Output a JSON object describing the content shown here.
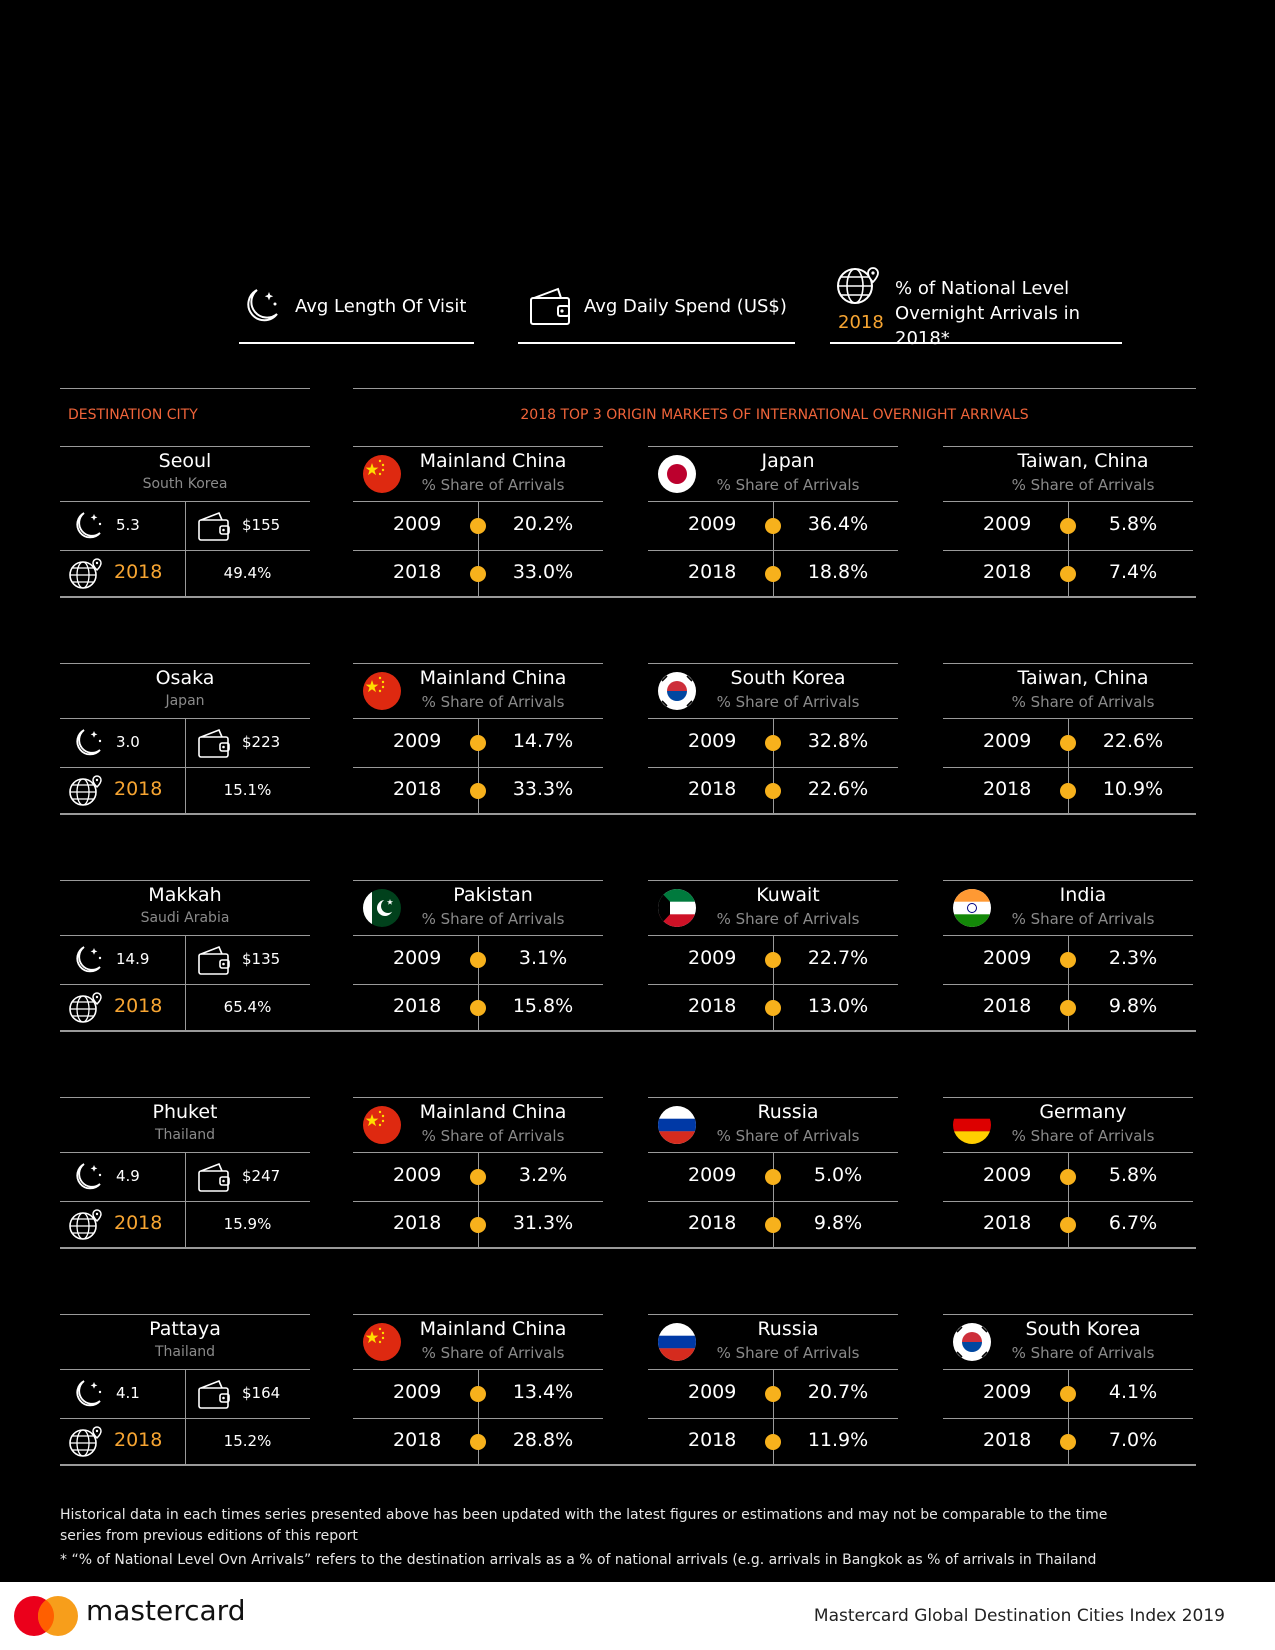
{
  "legend": {
    "length_label": "Avg Length Of Visit",
    "spend_label": "Avg Daily Spend (US$)",
    "national_label_line1": "% of National Level",
    "national_label_line2": "Overnight Arrivals in 2018*",
    "national_year": "2018"
  },
  "headers": {
    "destination": "DESTINATION CITY",
    "markets": "2018 TOP 3 ORIGIN MARKETS OF INTERNATIONAL OVERNIGHT ARRIVALS"
  },
  "subtitle_share": "% Share of Arrivals",
  "year_a": "2009",
  "year_b": "2018",
  "chart_data": {
    "type": "table",
    "cities": [
      {
        "name": "Seoul",
        "country": "South Korea",
        "length": "5.3",
        "spend": "$155",
        "year": "2018",
        "national": "49.4%",
        "markets": [
          {
            "name": "Mainland China",
            "flag": "china",
            "v2009": "20.2%",
            "v2018": "33.0%"
          },
          {
            "name": "Japan",
            "flag": "japan",
            "v2009": "36.4%",
            "v2018": "18.8%"
          },
          {
            "name": "Taiwan, China",
            "flag": "none",
            "v2009": "5.8%",
            "v2018": "7.4%"
          }
        ]
      },
      {
        "name": "Osaka",
        "country": "Japan",
        "length": "3.0",
        "spend": "$223",
        "year": "2018",
        "national": "15.1%",
        "markets": [
          {
            "name": "Mainland China",
            "flag": "china",
            "v2009": "14.7%",
            "v2018": "33.3%"
          },
          {
            "name": "South Korea",
            "flag": "korea",
            "v2009": "32.8%",
            "v2018": "22.6%"
          },
          {
            "name": "Taiwan, China",
            "flag": "none",
            "v2009": "22.6%",
            "v2018": "10.9%"
          }
        ]
      },
      {
        "name": "Makkah",
        "country": "Saudi Arabia",
        "length": "14.9",
        "spend": "$135",
        "year": "2018",
        "national": "65.4%",
        "markets": [
          {
            "name": "Pakistan",
            "flag": "pakistan",
            "v2009": "3.1%",
            "v2018": "15.8%"
          },
          {
            "name": "Kuwait",
            "flag": "kuwait",
            "v2009": "22.7%",
            "v2018": "13.0%"
          },
          {
            "name": "India",
            "flag": "india",
            "v2009": "2.3%",
            "v2018": "9.8%"
          }
        ]
      },
      {
        "name": "Phuket",
        "country": "Thailand",
        "length": "4.9",
        "spend": "$247",
        "year": "2018",
        "national": "15.9%",
        "markets": [
          {
            "name": "Mainland China",
            "flag": "china",
            "v2009": "3.2%",
            "v2018": "31.3%"
          },
          {
            "name": "Russia",
            "flag": "russia",
            "v2009": "5.0%",
            "v2018": "9.8%"
          },
          {
            "name": "Germany",
            "flag": "germany",
            "v2009": "5.8%",
            "v2018": "6.7%"
          }
        ]
      },
      {
        "name": "Pattaya",
        "country": "Thailand",
        "length": "4.1",
        "spend": "$164",
        "year": "2018",
        "national": "15.2%",
        "markets": [
          {
            "name": "Mainland China",
            "flag": "china",
            "v2009": "13.4%",
            "v2018": "28.8%"
          },
          {
            "name": "Russia",
            "flag": "russia",
            "v2009": "20.7%",
            "v2018": "11.9%"
          },
          {
            "name": "South Korea",
            "flag": "korea",
            "v2009": "4.1%",
            "v2018": "7.0%"
          }
        ]
      }
    ]
  },
  "footnotes": {
    "line1": "Historical data in each times series presented above has been updated with the latest figures or estimations and may not be comparable to the time",
    "line2": "series from previous editions of this report",
    "line3": "* “% of National Level Ovn Arrivals” refers to the destination arrivals as a % of national arrivals  (e.g. arrivals  in Bangkok as % of arrivals in Thailand"
  },
  "footer": {
    "brand": "mastercard",
    "report": "Mastercard Global Destination Cities Index 2019"
  },
  "colors": {
    "accent": "#f7a532",
    "header": "#f0643a",
    "dot": "#f7b11c"
  }
}
